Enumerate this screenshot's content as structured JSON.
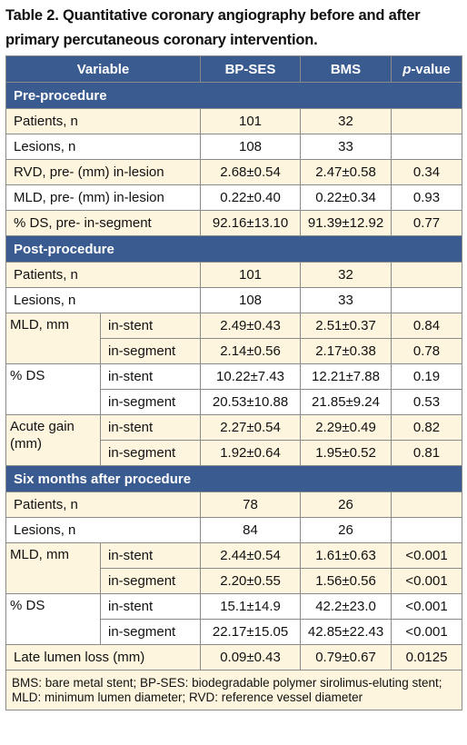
{
  "caption": "Table 2. Quantitative coronary angiography before and after primary percutaneous coronary intervention.",
  "header": {
    "variable": "Variable",
    "bpses": "BP-SES",
    "bms": "BMS",
    "pvalue_italic": "p",
    "pvalue_rest": "-value"
  },
  "sections": {
    "pre": "Pre-procedure",
    "post": "Post-procedure",
    "six": "Six months after procedure"
  },
  "pre_rows": [
    {
      "label": "Patients, n",
      "bpses": "101",
      "bms": "32",
      "p": ""
    },
    {
      "label": "Lesions, n",
      "bpses": "108",
      "bms": "33",
      "p": ""
    },
    {
      "label": "RVD, pre- (mm) in-lesion",
      "bpses": "2.68±0.54",
      "bms": "2.47±0.58",
      "p": "0.34"
    },
    {
      "label": "MLD, pre- (mm) in-lesion",
      "bpses": "0.22±0.40",
      "bms": "0.22±0.34",
      "p": "0.93"
    },
    {
      "label": "% DS, pre- in-segment",
      "bpses": "92.16±13.10",
      "bms": "91.39±12.92",
      "p": "0.77"
    }
  ],
  "post_simple": [
    {
      "label": "Patients, n",
      "bpses": "101",
      "bms": "32",
      "p": ""
    },
    {
      "label": "Lesions, n",
      "bpses": "108",
      "bms": "33",
      "p": ""
    }
  ],
  "post_groups": [
    {
      "label": "MLD, mm",
      "rows": [
        {
          "sub": "in-stent",
          "bpses": "2.49±0.43",
          "bms": "2.51±0.37",
          "p": "0.84"
        },
        {
          "sub": "in-segment",
          "bpses": "2.14±0.56",
          "bms": "2.17±0.38",
          "p": "0.78"
        }
      ]
    },
    {
      "label": "% DS",
      "rows": [
        {
          "sub": "in-stent",
          "bpses": "10.22±7.43",
          "bms": "12.21±7.88",
          "p": "0.19"
        },
        {
          "sub": "in-segment",
          "bpses": "20.53±10.88",
          "bms": "21.85±9.24",
          "p": "0.53"
        }
      ]
    },
    {
      "label": "Acute gain (mm)",
      "rows": [
        {
          "sub": "in-stent",
          "bpses": "2.27±0.54",
          "bms": "2.29±0.49",
          "p": "0.82"
        },
        {
          "sub": "in-segment",
          "bpses": "1.92±0.64",
          "bms": "1.95±0.52",
          "p": "0.81"
        }
      ]
    }
  ],
  "six_simple": [
    {
      "label": "Patients, n",
      "bpses": "78",
      "bms": "26",
      "p": ""
    },
    {
      "label": "Lesions, n",
      "bpses": "84",
      "bms": "26",
      "p": ""
    }
  ],
  "six_groups": [
    {
      "label": "MLD, mm",
      "rows": [
        {
          "sub": "in-stent",
          "bpses": "2.44±0.54",
          "bms": "1.61±0.63",
          "p": "<0.001"
        },
        {
          "sub": "in-segment",
          "bpses": "2.20±0.55",
          "bms": "1.56±0.56",
          "p": "<0.001"
        }
      ]
    },
    {
      "label": "% DS",
      "rows": [
        {
          "sub": "in-stent",
          "bpses": "15.1±14.9",
          "bms": "42.2±23.0",
          "p": "<0.001"
        },
        {
          "sub": "in-segment",
          "bpses": "22.17±15.05",
          "bms": "42.85±22.43",
          "p": "<0.001"
        }
      ]
    }
  ],
  "six_last": {
    "label": "Late lumen loss (mm)",
    "bpses": "0.09±0.43",
    "bms": "0.79±0.67",
    "p": "0.0125"
  },
  "footnote": "BMS: bare metal stent; BP-SES: biodegradable polymer sirolimus-eluting stent; MLD: minimum lumen diameter; RVD: reference vessel diameter",
  "colors": {
    "header_bg": "#3a5b8f",
    "row_tint": "#fdf5dd",
    "border": "#8a8a8a"
  }
}
